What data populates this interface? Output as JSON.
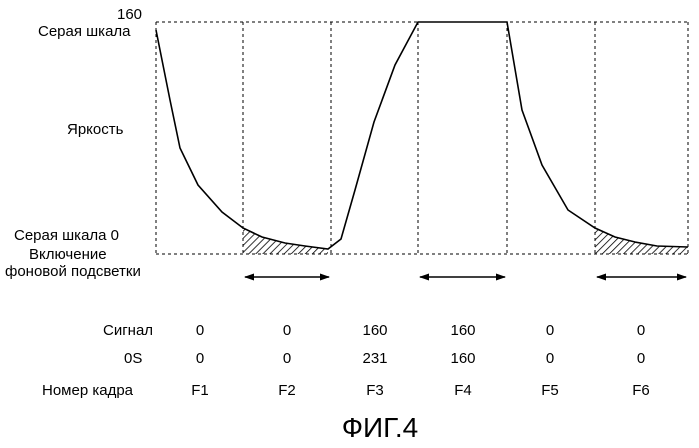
{
  "axis": {
    "max_value": "160",
    "gray_max_label": "Серая шкала",
    "brightness_label": "Яркость",
    "gray_zero_label": "Серая шкала 0",
    "backlight_label_line1": "Включение",
    "backlight_label_line2": "фоновой подсветки"
  },
  "table": {
    "rows": [
      {
        "label": "Сигнал",
        "values": [
          "0",
          "0",
          "160",
          "160",
          "0",
          "0"
        ]
      },
      {
        "label": "0S",
        "values": [
          "0",
          "0",
          "231",
          "160",
          "0",
          "0"
        ]
      },
      {
        "label": "Номер кадра",
        "values": [
          "F1",
          "F2",
          "F3",
          "F4",
          "F5",
          "F6"
        ]
      }
    ]
  },
  "figure_title": "ФИГ.4",
  "colors": {
    "line": "#000000",
    "background": "#ffffff"
  }
}
